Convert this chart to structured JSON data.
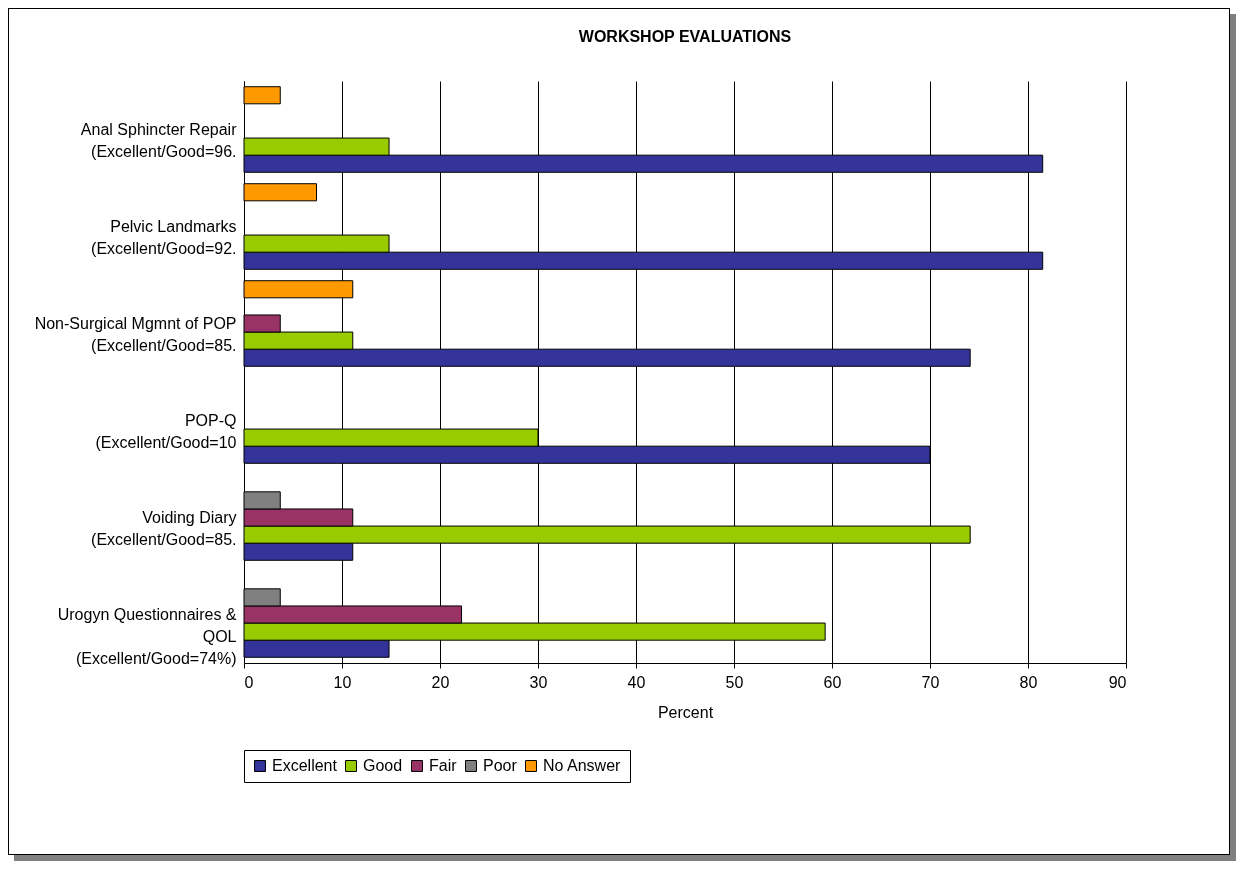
{
  "chart_data": {
    "type": "bar",
    "orientation": "horizontal",
    "title": "WORKSHOP EVALUATIONS",
    "xlabel": "Percent",
    "categories": [
      "Anal Sphincter Repair\n(Excellent/Good=96.",
      "Pelvic Landmarks\n(Excellent/Good=92.",
      "Non-Surgical Mgmnt  of POP\n(Excellent/Good=85.",
      "POP-Q\n(Excellent/Good=10",
      "Voiding Diary\n(Excellent/Good=85.",
      "Urogyn Questionnaires &\nQOL\n(Excellent/Good=74%)"
    ],
    "series": [
      {
        "name": "Excellent",
        "color": "#333399",
        "values": [
          81.5,
          81.5,
          74.1,
          70,
          11.1,
          14.8
        ]
      },
      {
        "name": "Good",
        "color": "#99cc00",
        "values": [
          14.8,
          14.8,
          11.1,
          30,
          74.1,
          59.3
        ]
      },
      {
        "name": "Fair",
        "color": "#993366",
        "values": [
          null,
          null,
          3.7,
          null,
          11.1,
          22.2
        ]
      },
      {
        "name": "Poor",
        "color": "#808080",
        "values": [
          null,
          null,
          null,
          null,
          3.7,
          3.7
        ]
      },
      {
        "name": "No Answer",
        "color": "#ff9900",
        "values": [
          3.7,
          7.4,
          11.1,
          null,
          null,
          null
        ]
      }
    ],
    "xlim": [
      0,
      90
    ],
    "xticks": [
      0,
      10,
      20,
      30,
      40,
      50,
      60,
      70,
      80,
      90
    ],
    "grid": "x",
    "legend": "bottom"
  }
}
